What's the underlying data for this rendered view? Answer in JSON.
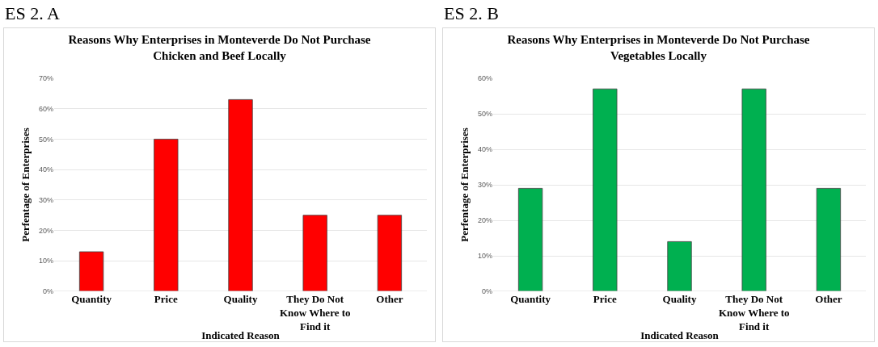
{
  "chart_data": [
    {
      "type": "bar",
      "title": "Reasons Why Enterprises in Monteverde Do Not Purchase Chicken and Beef Locally",
      "xlabel": "Indicated Reason",
      "ylabel": "Perfentage of Enterprises",
      "annotations": [
        "ES 2. A"
      ],
      "categories": [
        "Quantity",
        "Price",
        "Quality",
        "They Do Not Know Where to Find it",
        "Other"
      ],
      "values": [
        13,
        50,
        63,
        25,
        25
      ],
      "color": "#ff0000",
      "ylim": [
        0,
        70
      ],
      "yticks": [
        {
          "value": 0,
          "label": "0%"
        },
        {
          "value": 10,
          "label": "10%"
        },
        {
          "value": 20,
          "label": "20%"
        },
        {
          "value": 30,
          "label": "30%"
        },
        {
          "value": 40,
          "label": "40%"
        },
        {
          "value": 50,
          "label": "50%"
        },
        {
          "value": 60,
          "label": "60%"
        },
        {
          "value": 70,
          "label": "70%"
        }
      ],
      "grid": "y"
    },
    {
      "type": "bar",
      "title": "Reasons Why Enterprises in Monteverde Do Not Purchase Vegetables Locally",
      "xlabel": "Indicated Reason",
      "ylabel": "Perfentage of Enterprises",
      "annotations": [
        "ES 2. B"
      ],
      "categories": [
        "Quantity",
        "Price",
        "Quality",
        "They Do Not Know Where to Find it",
        "Other"
      ],
      "values": [
        29,
        57,
        14,
        57,
        29
      ],
      "color": "#00b050",
      "ylim": [
        0,
        60
      ],
      "yticks": [
        {
          "value": 0,
          "label": "0%"
        },
        {
          "value": 10,
          "label": "10%"
        },
        {
          "value": 20,
          "label": "20%"
        },
        {
          "value": 30,
          "label": "30%"
        },
        {
          "value": 40,
          "label": "40%"
        },
        {
          "value": 50,
          "label": "50%"
        },
        {
          "value": 60,
          "label": "60%"
        }
      ],
      "grid": "y"
    }
  ]
}
